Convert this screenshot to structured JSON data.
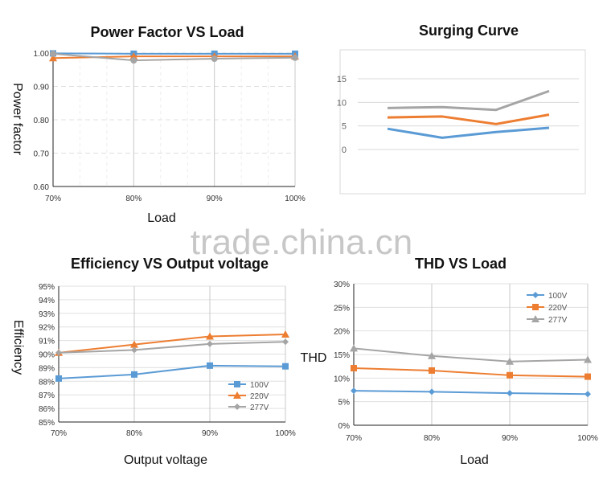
{
  "watermark": "trade.china.cn",
  "colors": {
    "100V": "#5b9bd5",
    "220V": "#ed7d31",
    "277V": "#a5a5a5"
  },
  "chart_data": [
    {
      "type": "line",
      "title": "Power Factor VS Load",
      "xlabel": "Load",
      "ylabel": "Power factor",
      "categories": [
        "70%",
        "80%",
        "90%",
        "100%"
      ],
      "ylim": [
        0.6,
        1.0
      ],
      "yticks": [
        "0.60",
        "0.70",
        "0.80",
        "0.90",
        "1.00"
      ],
      "grid": true,
      "legend": "none",
      "series": [
        {
          "key": "100V",
          "marker": "square",
          "values": [
            0.999,
            0.998,
            0.998,
            0.998
          ]
        },
        {
          "key": "220V",
          "marker": "triangle",
          "values": [
            0.985,
            0.99,
            0.99,
            0.99
          ]
        },
        {
          "key": "277V",
          "marker": "circle",
          "values": [
            0.998,
            0.978,
            0.983,
            0.986
          ]
        }
      ]
    },
    {
      "type": "line",
      "title": "Surging Curve",
      "xlabel": "",
      "ylabel": "",
      "categories": [
        "",
        "",
        "",
        ""
      ],
      "ylim": [
        0,
        15
      ],
      "yticks": [
        "0",
        "5",
        "10",
        "15"
      ],
      "grid": true,
      "legend": "none",
      "series": [
        {
          "key": "100V",
          "marker": "none",
          "values": [
            4.4,
            2.5,
            3.7,
            4.6
          ]
        },
        {
          "key": "220V",
          "marker": "none",
          "values": [
            6.8,
            7.0,
            5.4,
            7.4
          ]
        },
        {
          "key": "277V",
          "marker": "none",
          "values": [
            8.8,
            9.0,
            8.4,
            12.4
          ]
        }
      ]
    },
    {
      "type": "line",
      "title": "Efficiency VS Output voltage",
      "xlabel": "Output voltage",
      "ylabel": "Efficiency",
      "categories": [
        "70%",
        "80%",
        "90%",
        "100%"
      ],
      "ylim": [
        85,
        95
      ],
      "yticks": [
        "85%",
        "86%",
        "87%",
        "88%",
        "89%",
        "90%",
        "91%",
        "92%",
        "93%",
        "94%",
        "95%"
      ],
      "grid": true,
      "legend": "bottom-right",
      "series": [
        {
          "name": "100V",
          "key": "100V",
          "marker": "square",
          "values": [
            88.2,
            88.5,
            89.15,
            89.1
          ]
        },
        {
          "name": "220V",
          "key": "220V",
          "marker": "triangle",
          "values": [
            90.1,
            90.7,
            91.3,
            91.45
          ]
        },
        {
          "name": "277V",
          "key": "277V",
          "marker": "diamond",
          "values": [
            90.1,
            90.3,
            90.75,
            90.9
          ]
        }
      ]
    },
    {
      "type": "line",
      "title": "THD VS Load",
      "xlabel": "Load",
      "ylabel": "THD",
      "categories": [
        "70%",
        "80%",
        "90%",
        "100%"
      ],
      "ylim": [
        0,
        30
      ],
      "yticks": [
        "0%",
        "5%",
        "10%",
        "15%",
        "20%",
        "25%",
        "30%"
      ],
      "grid": true,
      "legend": "top-right",
      "series": [
        {
          "name": "100V",
          "key": "100V",
          "marker": "diamond",
          "values": [
            7.3,
            7.1,
            6.8,
            6.6
          ]
        },
        {
          "name": "220V",
          "key": "220V",
          "marker": "square",
          "values": [
            12.1,
            11.6,
            10.6,
            10.3
          ]
        },
        {
          "name": "277V",
          "key": "277V",
          "marker": "triangle",
          "values": [
            16.3,
            14.7,
            13.5,
            13.9
          ]
        }
      ]
    }
  ]
}
